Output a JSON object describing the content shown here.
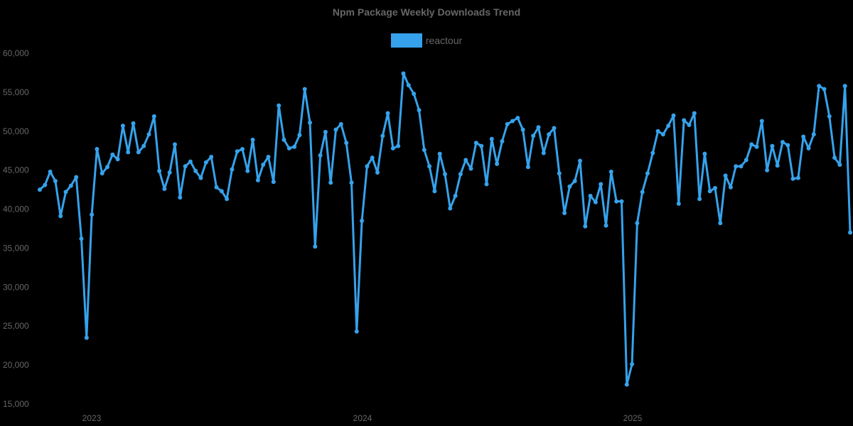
{
  "chart": {
    "title": "Npm Package Weekly Downloads Trend",
    "legend_label": "reactour",
    "series_color": "#36A2EB"
  },
  "chart_data": {
    "type": "line",
    "title": "Npm Package Weekly Downloads Trend",
    "xlabel": "",
    "ylabel": "",
    "ylim": [
      15000,
      60000
    ],
    "yticks": [
      15000,
      20000,
      25000,
      30000,
      35000,
      40000,
      45000,
      50000,
      55000,
      60000
    ],
    "ytick_labels": [
      "15,000",
      "20,000",
      "25,000",
      "30,000",
      "35,000",
      "40,000",
      "45,000",
      "50,000",
      "55,000",
      "60,000"
    ],
    "xtick_labels": [
      "2023",
      "2024",
      "2025"
    ],
    "grid": false,
    "legend_position": "top",
    "series": [
      {
        "name": "reactour",
        "color": "#36A2EB",
        "values": [
          42500,
          43100,
          44800,
          43600,
          39100,
          42200,
          43000,
          44100,
          36200,
          23500,
          39300,
          47700,
          44600,
          45400,
          47000,
          46400,
          50700,
          47300,
          51000,
          47300,
          48100,
          49600,
          51900,
          44900,
          42600,
          44700,
          48300,
          41500,
          45500,
          46100,
          44900,
          44000,
          46000,
          46700,
          42800,
          42300,
          41300,
          45100,
          47400,
          47700,
          44900,
          48900,
          43700,
          45700,
          46700,
          43500,
          53300,
          48900,
          47800,
          48000,
          49500,
          55400,
          51100,
          35200,
          46900,
          49900,
          43400,
          50200,
          50900,
          48500,
          43400,
          24300,
          38500,
          45500,
          46600,
          44700,
          49400,
          52300,
          47800,
          48100,
          57400,
          55900,
          54800,
          52700,
          47600,
          45500,
          42300,
          47100,
          44500,
          40100,
          41700,
          44500,
          46300,
          45200,
          48500,
          48100,
          43200,
          49000,
          45800,
          48700,
          50900,
          51300,
          51700,
          50200,
          45400,
          49400,
          50500,
          47200,
          49600,
          50400,
          44600,
          39500,
          42900,
          43600,
          46200,
          37800,
          41700,
          40900,
          43200,
          37900,
          44800,
          41000,
          41000,
          17500,
          20100,
          38200,
          42200,
          44600,
          47200,
          50000,
          49600,
          50700,
          52000,
          40700,
          51400,
          50800,
          52300,
          41300,
          47100,
          42300,
          42700,
          38200,
          44300,
          42800,
          45500,
          45500,
          46300,
          48300,
          48000,
          51300,
          45000,
          48100,
          45600,
          48600,
          48200,
          43900,
          44000,
          49300,
          47800,
          49600,
          55800,
          55400,
          51900,
          46600,
          45700,
          55800,
          37000
        ]
      }
    ]
  }
}
